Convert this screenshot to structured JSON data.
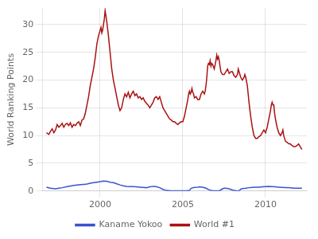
{
  "chart_data": {
    "type": "line",
    "ylabel": "World Ranking Points",
    "xlim": [
      1996.5,
      2012.5
    ],
    "xticks": [
      2000,
      2005,
      2010
    ],
    "ylim": [
      0,
      33
    ],
    "yticks": [
      0,
      5,
      10,
      15,
      20,
      25,
      30
    ],
    "grid": true,
    "legend": "bottom",
    "series": [
      {
        "name": "Kaname Yokoo",
        "color": "#3a52cc",
        "x": [
          1996.75,
          1997.0,
          1997.3,
          1997.5,
          1997.7,
          1998.0,
          1998.2,
          1998.4,
          1998.6,
          1998.8,
          1999.0,
          1999.2,
          1999.4,
          1999.6,
          1999.8,
          2000.0,
          2000.2,
          2000.4,
          2000.6,
          2000.8,
          2001.0,
          2001.2,
          2001.4,
          2001.6,
          2001.8,
          2002.0,
          2002.2,
          2002.4,
          2002.6,
          2002.8,
          2003.0,
          2003.2,
          2003.4,
          2003.6,
          2003.8,
          2004.0,
          2004.3,
          2004.6,
          2004.9,
          2005.0,
          2005.2,
          2005.4,
          2005.5,
          2005.7,
          2005.9,
          2006.0,
          2006.2,
          2006.4,
          2006.6,
          2006.8,
          2007.0,
          2007.2,
          2007.4,
          2007.5,
          2007.6,
          2007.8,
          2008.0,
          2008.2,
          2008.4,
          2008.5,
          2008.6,
          2008.8,
          2009.0,
          2009.2,
          2009.4,
          2009.6,
          2009.8,
          2010.0,
          2010.2,
          2010.4,
          2010.6,
          2010.8,
          2011.0,
          2011.2,
          2011.4,
          2011.6,
          2011.8,
          2012.0,
          2012.2
        ],
        "values": [
          0.7,
          0.5,
          0.4,
          0.5,
          0.6,
          0.8,
          0.9,
          1.0,
          1.1,
          1.15,
          1.2,
          1.25,
          1.4,
          1.5,
          1.6,
          1.7,
          1.8,
          1.75,
          1.6,
          1.5,
          1.3,
          1.1,
          0.95,
          0.85,
          0.8,
          0.8,
          0.75,
          0.7,
          0.65,
          0.6,
          0.75,
          0.85,
          0.8,
          0.6,
          0.3,
          0.1,
          0.05,
          0.05,
          0.05,
          0.05,
          0.05,
          0.1,
          0.5,
          0.65,
          0.7,
          0.75,
          0.7,
          0.5,
          0.2,
          0.05,
          0.05,
          0.05,
          0.4,
          0.5,
          0.5,
          0.4,
          0.2,
          0.05,
          0.05,
          0.35,
          0.45,
          0.5,
          0.6,
          0.65,
          0.7,
          0.7,
          0.75,
          0.8,
          0.85,
          0.8,
          0.75,
          0.7,
          0.65,
          0.6,
          0.6,
          0.55,
          0.5,
          0.5,
          0.5
        ]
      },
      {
        "name": "World #1",
        "color": "#aa1111",
        "x": [
          1996.75,
          1996.9,
          1997.0,
          1997.1,
          1997.2,
          1997.3,
          1997.4,
          1997.5,
          1997.6,
          1997.7,
          1997.8,
          1997.9,
          1998.0,
          1998.1,
          1998.2,
          1998.3,
          1998.4,
          1998.5,
          1998.6,
          1998.7,
          1998.8,
          1998.9,
          1999.0,
          1999.1,
          1999.2,
          1999.3,
          1999.4,
          1999.5,
          1999.6,
          1999.7,
          1999.8,
          1999.9,
          2000.0,
          2000.05,
          2000.1,
          2000.15,
          2000.2,
          2000.25,
          2000.3,
          2000.35,
          2000.4,
          2000.5,
          2000.6,
          2000.7,
          2000.8,
          2000.9,
          2001.0,
          2001.1,
          2001.2,
          2001.3,
          2001.4,
          2001.5,
          2001.6,
          2001.7,
          2001.8,
          2001.9,
          2002.0,
          2002.1,
          2002.2,
          2002.3,
          2002.4,
          2002.5,
          2002.6,
          2002.7,
          2002.8,
          2002.9,
          2003.0,
          2003.1,
          2003.2,
          2003.3,
          2003.4,
          2003.5,
          2003.6,
          2003.7,
          2003.8,
          2003.9,
          2004.0,
          2004.1,
          2004.2,
          2004.3,
          2004.4,
          2004.5,
          2004.6,
          2004.7,
          2004.8,
          2004.9,
          2005.0,
          2005.1,
          2005.2,
          2005.3,
          2005.35,
          2005.4,
          2005.45,
          2005.5,
          2005.55,
          2005.6,
          2005.65,
          2005.7,
          2005.8,
          2005.9,
          2006.0,
          2006.1,
          2006.2,
          2006.3,
          2006.35,
          2006.4,
          2006.45,
          2006.5,
          2006.55,
          2006.6,
          2006.65,
          2006.7,
          2006.75,
          2006.8,
          2006.9,
          2007.0,
          2007.05,
          2007.1,
          2007.15,
          2007.2,
          2007.25,
          2007.3,
          2007.4,
          2007.5,
          2007.6,
          2007.7,
          2007.8,
          2007.9,
          2008.0,
          2008.1,
          2008.2,
          2008.3,
          2008.35,
          2008.4,
          2008.45,
          2008.5,
          2008.6,
          2008.7,
          2008.75,
          2008.8,
          2008.9,
          2009.0,
          2009.1,
          2009.2,
          2009.3,
          2009.4,
          2009.5,
          2009.6,
          2009.7,
          2009.8,
          2009.9,
          2010.0,
          2010.1,
          2010.2,
          2010.3,
          2010.35,
          2010.4,
          2010.45,
          2010.5,
          2010.55,
          2010.6,
          2010.7,
          2010.75,
          2010.8,
          2010.9,
          2011.0,
          2011.05,
          2011.1,
          2011.15,
          2011.2,
          2011.3,
          2011.4,
          2011.5,
          2011.6,
          2011.7,
          2011.8,
          2011.9,
          2012.0,
          2012.1,
          2012.2
        ],
        "values": [
          10.5,
          10.2,
          10.8,
          11.2,
          10.5,
          11.0,
          12.0,
          11.5,
          11.8,
          12.2,
          11.5,
          12.0,
          12.2,
          11.8,
          12.3,
          11.5,
          12.0,
          11.8,
          12.2,
          12.5,
          11.8,
          12.8,
          13.0,
          14.0,
          15.5,
          17.0,
          19.0,
          20.5,
          22.0,
          24.0,
          26.5,
          28.0,
          29.0,
          29.5,
          28.5,
          29.0,
          30.0,
          31.0,
          32.5,
          31.5,
          30.5,
          28.0,
          25.0,
          22.0,
          20.0,
          18.5,
          17.0,
          15.5,
          14.5,
          15.0,
          16.5,
          17.5,
          17.0,
          17.8,
          16.8,
          17.5,
          18.0,
          17.2,
          17.5,
          16.8,
          17.0,
          16.5,
          16.8,
          16.2,
          15.8,
          15.5,
          15.0,
          15.5,
          16.0,
          16.8,
          17.0,
          16.5,
          17.0,
          16.0,
          15.0,
          14.5,
          14.0,
          13.5,
          13.0,
          12.8,
          12.5,
          12.5,
          12.2,
          12.0,
          12.3,
          12.5,
          12.5,
          13.5,
          15.0,
          16.5,
          17.5,
          18.0,
          17.5,
          17.8,
          18.5,
          17.8,
          17.5,
          16.8,
          17.0,
          16.5,
          16.5,
          17.5,
          18.0,
          17.5,
          18.0,
          19.0,
          20.5,
          22.5,
          23.0,
          22.8,
          23.5,
          22.5,
          23.0,
          22.8,
          22.0,
          23.5,
          24.5,
          23.8,
          24.2,
          23.5,
          22.5,
          21.5,
          21.0,
          21.0,
          21.5,
          22.0,
          21.2,
          21.5,
          21.5,
          20.8,
          20.5,
          21.0,
          22.0,
          21.5,
          21.0,
          20.5,
          20.0,
          20.5,
          21.0,
          20.5,
          19.0,
          16.0,
          13.5,
          11.5,
          10.0,
          9.5,
          9.5,
          9.8,
          10.0,
          10.5,
          11.0,
          10.5,
          11.5,
          13.0,
          14.5,
          15.5,
          16.0,
          15.5,
          15.5,
          14.0,
          13.0,
          11.5,
          11.0,
          10.5,
          10.0,
          10.5,
          11.0,
          10.0,
          9.5,
          9.0,
          8.8,
          8.5,
          8.5,
          8.2,
          8.0,
          8.0,
          8.2,
          8.5,
          8.0,
          7.5
        ]
      }
    ]
  }
}
